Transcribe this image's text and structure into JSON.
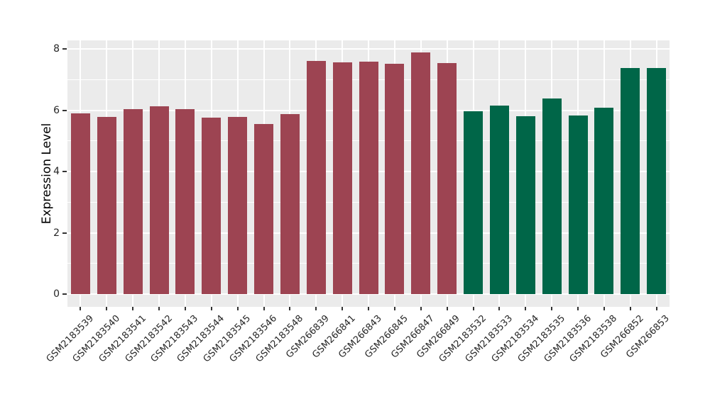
{
  "chart_data": {
    "type": "bar",
    "title": "",
    "xlabel": "",
    "ylabel": "Expression Level",
    "categories": [
      "GSM2183539",
      "GSM2183540",
      "GSM2183541",
      "GSM2183542",
      "GSM2183543",
      "GSM2183544",
      "GSM2183545",
      "GSM2183546",
      "GSM2183548",
      "GSM266839",
      "GSM266841",
      "GSM266843",
      "GSM266845",
      "GSM266847",
      "GSM266849",
      "GSM2183532",
      "GSM2183533",
      "GSM2183534",
      "GSM2183535",
      "GSM2183536",
      "GSM2183538",
      "GSM266852",
      "GSM266853"
    ],
    "values": [
      5.9,
      5.78,
      6.03,
      6.13,
      6.03,
      5.76,
      5.78,
      5.55,
      5.87,
      7.61,
      7.56,
      7.58,
      7.51,
      7.88,
      7.54,
      5.97,
      6.15,
      5.8,
      6.38,
      5.83,
      6.08,
      7.38,
      7.38
    ],
    "bar_colors": [
      "#9D4452",
      "#9D4452",
      "#9D4452",
      "#9D4452",
      "#9D4452",
      "#9D4452",
      "#9D4452",
      "#9D4452",
      "#9D4452",
      "#9D4452",
      "#9D4452",
      "#9D4452",
      "#9D4452",
      "#9D4452",
      "#9D4452",
      "#006648",
      "#006648",
      "#006648",
      "#006648",
      "#006648",
      "#006648",
      "#006648",
      "#006648"
    ],
    "y_ticks": [
      0,
      2,
      4,
      6,
      8
    ],
    "y_tick_labels": [
      "0",
      "2",
      "4",
      "6",
      "8"
    ],
    "y_minor_ticks": [
      1,
      3,
      5,
      7
    ],
    "ylim": [
      0,
      8.3
    ],
    "grid": "on",
    "legend_position": "none",
    "panel_background": "#EBEBEB",
    "grid_color": "#FFFFFF",
    "tick_color": "#333333",
    "label_color": "#262626"
  }
}
